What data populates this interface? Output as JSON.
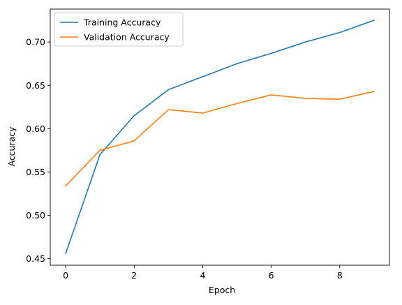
{
  "chart_data": {
    "type": "line",
    "title": "",
    "xlabel": "Epoch",
    "ylabel": "Accuracy",
    "xlim": [
      -0.45,
      9.45
    ],
    "ylim": [
      0.4425,
      0.738
    ],
    "xticks": [
      0,
      2,
      4,
      6,
      8
    ],
    "xtick_labels": [
      "0",
      "2",
      "4",
      "6",
      "8"
    ],
    "yticks": [
      0.45,
      0.5,
      0.55,
      0.6,
      0.65,
      0.7
    ],
    "ytick_labels": [
      "0.45",
      "0.50",
      "0.55",
      "0.60",
      "0.65",
      "0.70"
    ],
    "grid": false,
    "legend_position": "top-left",
    "x": [
      0,
      1,
      2,
      3,
      4,
      5,
      6,
      7,
      8,
      9
    ],
    "series": [
      {
        "name": "Training Accuracy",
        "color": "#1f77b4",
        "values": [
          0.456,
          0.57,
          0.615,
          0.645,
          0.66,
          0.675,
          0.687,
          0.7,
          0.711,
          0.725
        ]
      },
      {
        "name": "Validation Accuracy",
        "color": "#ff7f0e",
        "values": [
          0.534,
          0.575,
          0.586,
          0.622,
          0.618,
          0.629,
          0.639,
          0.635,
          0.634,
          0.643
        ]
      }
    ]
  }
}
